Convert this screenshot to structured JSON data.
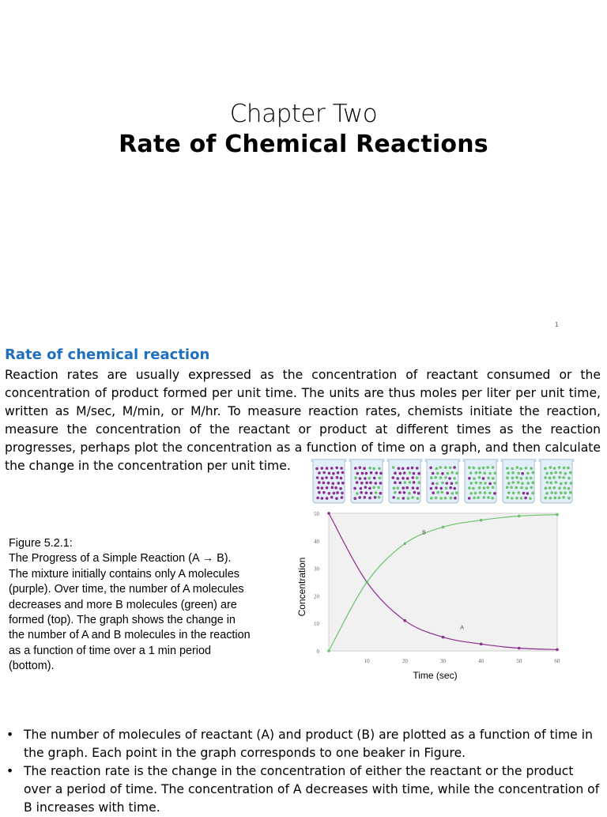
{
  "title": {
    "chapter": "Chapter Two",
    "main": "Rate of Chemical Reactions"
  },
  "page_number": "1",
  "section": {
    "heading": "Rate of chemical reaction",
    "body": "Reaction rates are usually expressed as the concentration of reactant consumed or the concentration of product formed per unit time. The units are thus moles per liter per unit time, written as M/sec, M/min, or M/hr. To measure reaction rates, chemists initiate the reaction, measure the concentration of the reactant or product at different times as the reaction progresses, perhaps plot the concentration as a function of time on a graph, and then calculate the change in the concentration per unit time."
  },
  "figure": {
    "caption_lines": [
      "Figure 5.2.1:",
      "The Progress of a Simple Reaction (A → B).",
      "The mixture initially contains only A molecules",
      "(purple). Over time, the number of A molecules",
      "decreases and more B molecules (green) are",
      "formed (top). The graph shows the change in",
      "the number of A and B molecules in the reaction",
      "as a function of time over a 1 min period",
      "(bottom)."
    ],
    "beaker_fraction_b": [
      0.0,
      0.2,
      0.45,
      0.62,
      0.78,
      0.88,
      0.96
    ],
    "colors": {
      "a": "#8b2c8f",
      "b": "#6cc36a",
      "beaker": "#e2eef8"
    }
  },
  "chart_data": {
    "type": "line",
    "xlabel": "Time (sec)",
    "ylabel": "Concentration",
    "xlim": [
      0,
      60
    ],
    "ylim": [
      0,
      50
    ],
    "xticks": [
      10,
      20,
      30,
      40,
      50,
      60
    ],
    "yticks": [
      0,
      10,
      20,
      30,
      40,
      50
    ],
    "x": [
      0,
      10,
      20,
      30,
      40,
      50,
      60
    ],
    "series": [
      {
        "name": "A",
        "values": [
          50,
          25,
          11,
          5,
          2.5,
          1,
          0.5
        ],
        "color": "#8b2c8f"
      },
      {
        "name": "B",
        "values": [
          0,
          25,
          39,
          45,
          47.5,
          49,
          49.5
        ],
        "color": "#6cc36a"
      }
    ],
    "grid": false
  },
  "bullets": [
    "The number of molecules of reactant (A) and product (B) are plotted as a function of time in the graph. Each point in the graph corresponds to one beaker in Figure.",
    "The reaction rate is the change in the concentration of either the reactant or the product over a period of time. The concentration of A decreases with time, while the concentration of B increases with time."
  ]
}
